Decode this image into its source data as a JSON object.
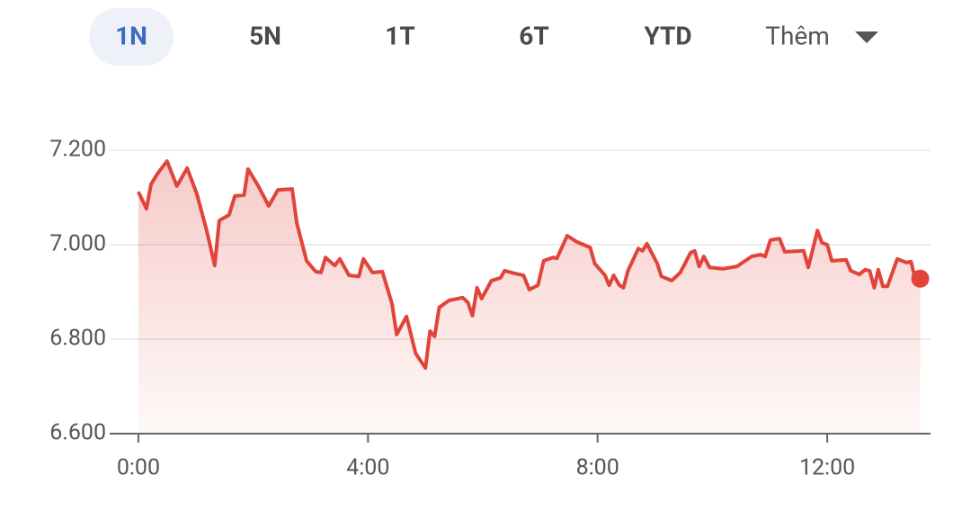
{
  "tabs": [
    "1N",
    "5N",
    "1T",
    "6T",
    "YTD",
    "Thêm"
  ],
  "selected_tab": 0,
  "chart_data": {
    "type": "line",
    "color": "#e0443a",
    "x": [
      0.0,
      0.14,
      0.22,
      0.33,
      0.5,
      0.67,
      0.85,
      1.02,
      1.19,
      1.33,
      1.41,
      1.58,
      1.68,
      1.84,
      1.91,
      2.09,
      2.27,
      2.43,
      2.68,
      2.76,
      2.93,
      3.09,
      3.18,
      3.26,
      3.42,
      3.51,
      3.67,
      3.84,
      3.92,
      4.08,
      4.25,
      4.42,
      4.5,
      4.67,
      4.83,
      5.0,
      5.08,
      5.16,
      5.24,
      5.41,
      5.65,
      5.74,
      5.82,
      5.9,
      5.98,
      6.15,
      6.31,
      6.38,
      6.56,
      6.71,
      6.81,
      6.96,
      7.06,
      7.22,
      7.29,
      7.47,
      7.64,
      7.87,
      7.95,
      8.13,
      8.2,
      8.28,
      8.38,
      8.45,
      8.53,
      8.71,
      8.78,
      8.86,
      9.04,
      9.11,
      9.29,
      9.44,
      9.62,
      9.69,
      9.77,
      9.85,
      9.95,
      10.18,
      10.43,
      10.68,
      10.84,
      10.92,
      11.01,
      11.17,
      11.26,
      11.59,
      11.67,
      11.83,
      11.91,
      12.0,
      12.08,
      12.33,
      12.41,
      12.56,
      12.66,
      12.74,
      12.82,
      12.89,
      12.97,
      13.05,
      13.22,
      13.38,
      13.46,
      13.54,
      13.62
    ],
    "values": [
      7112,
      7076,
      7128,
      7150,
      7177,
      7124,
      7162,
      7107,
      7030,
      6956,
      7051,
      7063,
      7103,
      7105,
      7160,
      7124,
      7082,
      7116,
      7118,
      7046,
      6966,
      6943,
      6941,
      6973,
      6956,
      6970,
      6935,
      6933,
      6970,
      6941,
      6943,
      6874,
      6810,
      6848,
      6770,
      6739,
      6817,
      6806,
      6867,
      6882,
      6888,
      6878,
      6850,
      6909,
      6886,
      6924,
      6930,
      6945,
      6939,
      6935,
      6905,
      6914,
      6966,
      6973,
      6971,
      7019,
      7006,
      6994,
      6960,
      6935,
      6914,
      6935,
      6914,
      6909,
      6945,
      6992,
      6987,
      7002,
      6960,
      6933,
      6924,
      6941,
      6983,
      6987,
      6954,
      6975,
      6952,
      6949,
      6954,
      6975,
      6979,
      6975,
      7010,
      7013,
      6985,
      6987,
      6952,
      7030,
      7004,
      7000,
      6966,
      6968,
      6945,
      6937,
      6947,
      6945,
      6909,
      6947,
      6912,
      6912,
      6970,
      6962,
      6964,
      6924,
      6928
    ],
    "xlim": [
      -0.5,
      13.8
    ],
    "xticks": [
      {
        "value": 0,
        "label": "0:00"
      },
      {
        "value": 4,
        "label": "4:00"
      },
      {
        "value": 8,
        "label": "8:00"
      },
      {
        "value": 12,
        "label": "12:00"
      }
    ],
    "ylim": [
      6600,
      7200
    ],
    "yticks": [
      {
        "value": 6600,
        "label": "6.600"
      },
      {
        "value": 6800,
        "label": "6.800"
      },
      {
        "value": 7000,
        "label": "7.000"
      },
      {
        "value": 7200,
        "label": "7.200"
      }
    ],
    "grid": true
  }
}
